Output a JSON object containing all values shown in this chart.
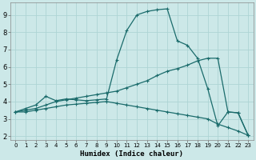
{
  "title": "",
  "xlabel": "Humidex (Indice chaleur)",
  "ylabel": "",
  "xlim": [
    -0.5,
    23.5
  ],
  "ylim": [
    1.8,
    9.7
  ],
  "xticks": [
    0,
    1,
    2,
    3,
    4,
    5,
    6,
    7,
    8,
    9,
    10,
    11,
    12,
    13,
    14,
    15,
    16,
    17,
    18,
    19,
    20,
    21,
    22,
    23
  ],
  "yticks": [
    2,
    3,
    4,
    5,
    6,
    7,
    8,
    9
  ],
  "bg_color": "#cce8e8",
  "line_color": "#1a6b6b",
  "grid_color": "#aed4d4",
  "line1_x": [
    0,
    1,
    2,
    3,
    4,
    5,
    6,
    7,
    8,
    9,
    10,
    11,
    12,
    13,
    14,
    15,
    16,
    17,
    18,
    19,
    20,
    21,
    22,
    23
  ],
  "line1_y": [
    3.4,
    3.6,
    3.8,
    4.3,
    4.05,
    4.15,
    4.1,
    4.05,
    4.1,
    4.15,
    6.4,
    8.1,
    9.0,
    9.2,
    9.3,
    9.35,
    7.5,
    7.25,
    6.5,
    4.75,
    2.6,
    3.4,
    3.35,
    2.05
  ],
  "line2_x": [
    0,
    1,
    2,
    3,
    4,
    5,
    6,
    7,
    8,
    9,
    10,
    11,
    12,
    13,
    14,
    15,
    16,
    17,
    18,
    19,
    20,
    21,
    22,
    23
  ],
  "line2_y": [
    3.4,
    3.5,
    3.6,
    3.8,
    4.0,
    4.1,
    4.2,
    4.3,
    4.4,
    4.5,
    4.6,
    4.8,
    5.0,
    5.2,
    5.5,
    5.75,
    5.9,
    6.1,
    6.35,
    6.5,
    6.5,
    3.4,
    3.35,
    2.05
  ],
  "line3_x": [
    0,
    1,
    2,
    3,
    4,
    5,
    6,
    7,
    8,
    9,
    10,
    11,
    12,
    13,
    14,
    15,
    16,
    17,
    18,
    19,
    20,
    21,
    22,
    23
  ],
  "line3_y": [
    3.4,
    3.4,
    3.5,
    3.6,
    3.7,
    3.8,
    3.85,
    3.9,
    3.95,
    4.0,
    3.9,
    3.8,
    3.7,
    3.6,
    3.5,
    3.4,
    3.3,
    3.2,
    3.1,
    3.0,
    2.7,
    2.5,
    2.3,
    2.05
  ]
}
